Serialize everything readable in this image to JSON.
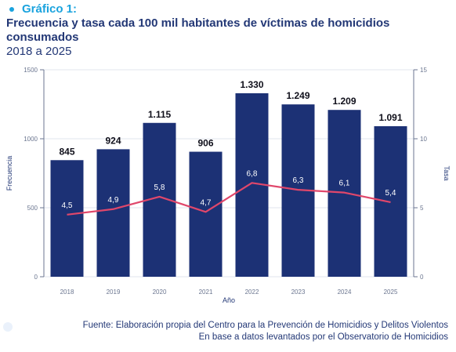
{
  "header": {
    "graphic_label": "Gráfico 1:",
    "title": "Frecuencia y tasa cada 100 mil habitantes de víctimas de homicidios consumados",
    "subtitle": "2018 a 2025"
  },
  "source": {
    "line1": "Fuente: Elaboración propia del Centro para la Prevención de Homicidios y Delitos Violentos",
    "line2": "En base a datos levantados por el Observatorio de Homicidios"
  },
  "colors": {
    "bar": "#1c3175",
    "line": "#e0476b",
    "text": "#233876",
    "accent": "#1aa3de"
  },
  "chart_data": {
    "type": "bar",
    "categories": [
      "2018",
      "2019",
      "2020",
      "2021",
      "2022",
      "2023",
      "2024",
      "2025"
    ],
    "series": [
      {
        "name": "Frecuencia",
        "type": "bar",
        "axis": "left",
        "values": [
          845,
          924,
          1115,
          906,
          1330,
          1249,
          1209,
          1091
        ],
        "labels": [
          "845",
          "924",
          "1.115",
          "906",
          "1.330",
          "1.249",
          "1.209",
          "1.091"
        ]
      },
      {
        "name": "Tasa",
        "type": "line",
        "axis": "right",
        "values": [
          4.5,
          4.9,
          5.8,
          4.7,
          6.8,
          6.3,
          6.1,
          5.4
        ],
        "labels": [
          "4,5",
          "4,9",
          "5,8",
          "4,7",
          "6,8",
          "6,3",
          "6,1",
          "5,4"
        ]
      }
    ],
    "xlabel": "Año",
    "ylabel": "Frecuencia",
    "y2label": "Tasa",
    "ylim": [
      0,
      1500
    ],
    "y2lim": [
      0,
      15
    ],
    "yticks": [
      0,
      500,
      1000,
      1500
    ],
    "y2ticks": [
      0,
      5,
      10,
      15
    ],
    "grid": true,
    "legend": "none"
  }
}
